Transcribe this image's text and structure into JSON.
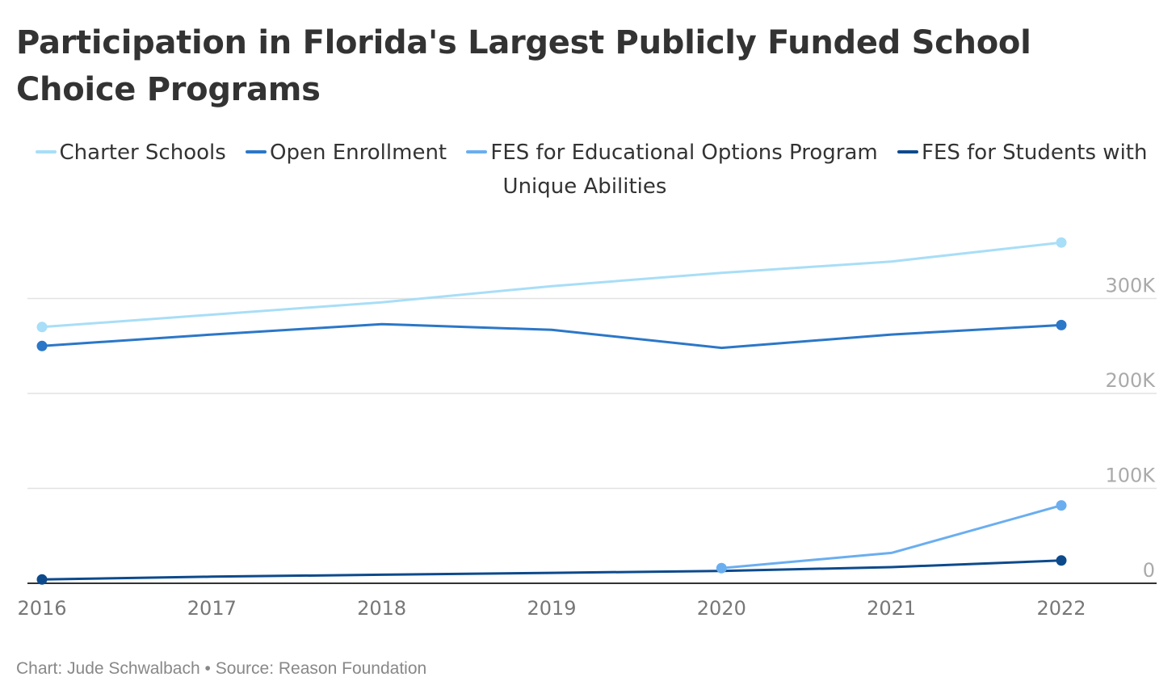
{
  "title": "Participation in Florida's Largest Publicly Funded School Choice Programs",
  "footer": {
    "credit": "Chart: Jude Schwalbach",
    "separator": "•",
    "source": "Source: Reason Foundation"
  },
  "colors": {
    "charter": "#a8def7",
    "open": "#2b77c8",
    "fes_eo": "#6aaef0",
    "fes_ua": "#0d4a8c",
    "grid": "#e2e2e2",
    "axis": "#333333",
    "tick_label": "#aaaaaa",
    "x_label": "#777777"
  },
  "chart_data": {
    "type": "line",
    "title": "Participation in Florida's Largest Publicly Funded School Choice Programs",
    "xlabel": "",
    "ylabel": "",
    "x": [
      "2016",
      "2017",
      "2018",
      "2019",
      "2020",
      "2021",
      "2022"
    ],
    "ylim": [
      0,
      360000
    ],
    "y_ticks": [
      0,
      100000,
      200000,
      300000
    ],
    "y_tick_labels": [
      "0",
      "100K",
      "200K",
      "300K"
    ],
    "grid": true,
    "legend": "top",
    "series": [
      {
        "name": "Charter Schools",
        "color": "#a8def7",
        "values": [
          270000,
          283000,
          296000,
          313000,
          327000,
          339000,
          359000
        ]
      },
      {
        "name": "Open Enrollment",
        "color": "#2b77c8",
        "values": [
          250000,
          262000,
          273000,
          267000,
          248000,
          262000,
          272000
        ]
      },
      {
        "name": "FES for Educational Options Program",
        "color": "#6aaef0",
        "values": [
          null,
          null,
          null,
          null,
          16000,
          32000,
          82000
        ]
      },
      {
        "name": "FES for Students with Unique Abilities",
        "color": "#0d4a8c",
        "values": [
          4000,
          7000,
          9000,
          11000,
          13000,
          17000,
          24000
        ]
      }
    ]
  }
}
